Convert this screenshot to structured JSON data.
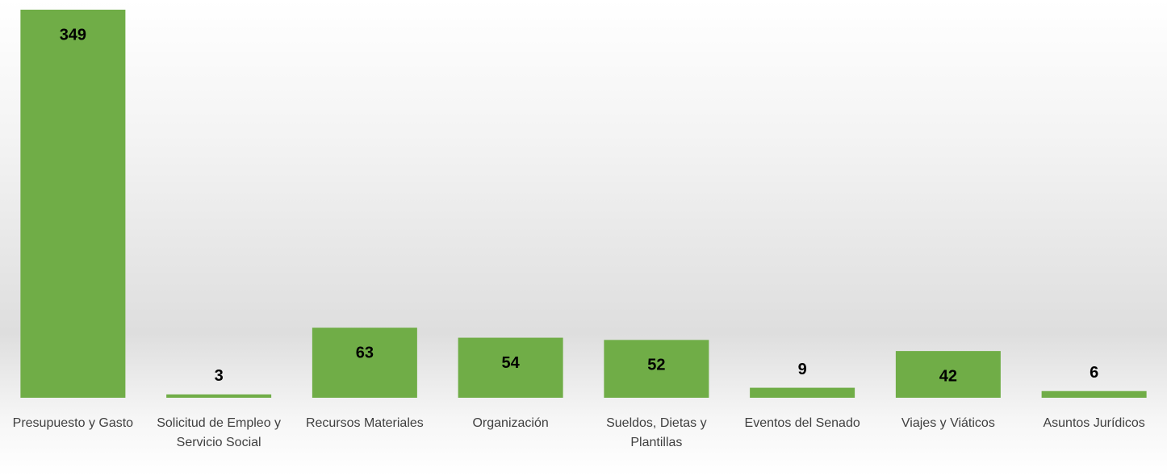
{
  "chart_data": {
    "type": "bar",
    "categories": [
      "Presupuesto y Gasto",
      "Solicitud de Empleo y Servicio Social",
      "Recursos Materiales",
      "Organización",
      "Sueldos, Dietas y Plantillas",
      "Eventos del Senado",
      "Viajes y Viáticos",
      "Asuntos Jurídicos"
    ],
    "values": [
      349,
      3,
      63,
      54,
      52,
      9,
      42,
      6
    ],
    "color": "#70ad47"
  }
}
